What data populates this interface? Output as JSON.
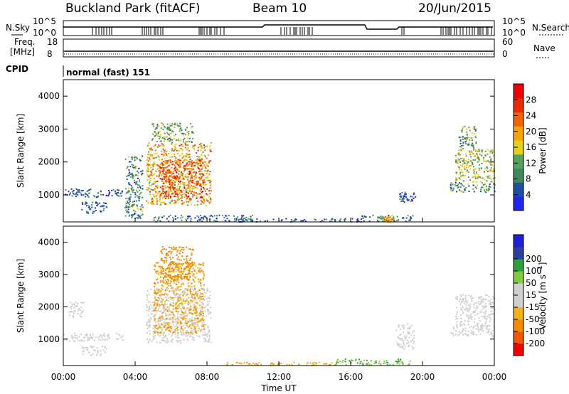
{
  "header": {
    "station": "Buckland Park (fitACF)",
    "beam": "Beam 10",
    "date": "20/Jun/2015"
  },
  "status_panels": {
    "nsky_label": "N.Sky",
    "nsky_ticks": [
      "10^5",
      "10^0"
    ],
    "nsearch_label": "N.Search",
    "nsearch_ticks": [
      "10^5",
      "10^0"
    ],
    "freq_label_1": "Freq.",
    "freq_label_2": "[MHz]",
    "freq_ticks": [
      "18",
      "8"
    ],
    "nave_label": "Nave",
    "nave_ticks": [
      "60",
      "0"
    ],
    "cpid_label": "CPID",
    "cpid_value": "normal (fast) 151"
  },
  "colors": {
    "power_scale": [
      "#1f25f5",
      "#1e4fa0",
      "#3d8a5f",
      "#55a35e",
      "#e6d01b",
      "#f7a400",
      "#f56300",
      "#f02800",
      "#f00000"
    ],
    "velocity_scale": [
      "#f00000",
      "#f55500",
      "#f58a00",
      "#f2b21e",
      "#cfcfcf",
      "#cfcfcf",
      "#80cc40",
      "#2aa13a",
      "#2a8a6e",
      "#2b3fa0",
      "#2020d8"
    ]
  },
  "chart_data": [
    {
      "type": "heatmap",
      "name_panel": "power",
      "xlabel": "",
      "ylabel": "Slant Range [km]",
      "ylim": [
        180,
        4500
      ],
      "xlim": [
        "00:00",
        "24:00"
      ],
      "y_ticks": [
        "1000",
        "2000",
        "3000",
        "4000"
      ],
      "colorbar_label": "Power [dB]",
      "colorbar_ticks": [
        "4",
        "8",
        "12",
        "16",
        "20",
        "24",
        "28"
      ],
      "colorbar_range": [
        0,
        32
      ],
      "regions": [
        {
          "t": [
            0.0,
            3.3
          ],
          "r": [
            950,
            1200
          ],
          "v": 6
        },
        {
          "t": [
            1.0,
            2.4
          ],
          "r": [
            450,
            800
          ],
          "v": 6
        },
        {
          "t": [
            4.6,
            8.2
          ],
          "r": [
            700,
            2600
          ],
          "v": 22
        },
        {
          "t": [
            5.3,
            7.8
          ],
          "r": [
            900,
            2100
          ],
          "v": 28
        },
        {
          "t": [
            4.9,
            7.2
          ],
          "r": [
            2600,
            3200
          ],
          "v": 14
        },
        {
          "t": [
            3.4,
            4.4
          ],
          "r": [
            300,
            2200
          ],
          "v": 10
        },
        {
          "t": [
            5.0,
            10.5
          ],
          "r": [
            200,
            400
          ],
          "v": 8
        },
        {
          "t": [
            9.5,
            16.5
          ],
          "r": [
            200,
            300
          ],
          "v": 6
        },
        {
          "t": [
            16.5,
            19.5
          ],
          "r": [
            200,
            400
          ],
          "v": 10
        },
        {
          "t": [
            17.8,
            18.4
          ],
          "r": [
            200,
            350
          ],
          "v": 22
        },
        {
          "t": [
            18.6,
            19.6
          ],
          "r": [
            800,
            1100
          ],
          "v": 6
        },
        {
          "t": [
            21.5,
            24.0
          ],
          "r": [
            1100,
            1400
          ],
          "v": 10
        },
        {
          "t": [
            21.8,
            24.0
          ],
          "r": [
            1400,
            2400
          ],
          "v": 16
        },
        {
          "t": [
            22.0,
            23.0
          ],
          "r": [
            2400,
            3100
          ],
          "v": 12
        }
      ]
    },
    {
      "type": "heatmap",
      "name_panel": "velocity",
      "xlabel": "Time UT",
      "ylabel": "Slant Range [km]",
      "ylim": [
        180,
        4500
      ],
      "xlim": [
        "00:00",
        "24:00"
      ],
      "x_ticks": [
        "00:00",
        "04:00",
        "08:00",
        "12:00",
        "16:00",
        "20:00",
        "00:00"
      ],
      "y_ticks": [
        "1000",
        "2000",
        "3000",
        "4000"
      ],
      "colorbar_label": "Velocity [m s^-1]",
      "colorbar_ticks": [
        "-200",
        "-100",
        "-50",
        "-15",
        "15",
        "50",
        "100",
        "200"
      ],
      "regions": [
        {
          "t": [
            0.0,
            3.3
          ],
          "r": [
            950,
            1200
          ],
          "v": 0
        },
        {
          "t": [
            0.3,
            1.2
          ],
          "r": [
            1700,
            2200
          ],
          "v": 0
        },
        {
          "t": [
            1.0,
            2.4
          ],
          "r": [
            500,
            800
          ],
          "v": 0
        },
        {
          "t": [
            4.6,
            8.2
          ],
          "r": [
            900,
            2600
          ],
          "v": 0
        },
        {
          "t": [
            5.0,
            7.8
          ],
          "r": [
            1200,
            3400
          ],
          "v": -30
        },
        {
          "t": [
            5.4,
            7.2
          ],
          "r": [
            2800,
            3900
          ],
          "v": -60
        },
        {
          "t": [
            9.0,
            15.0
          ],
          "r": [
            200,
            300
          ],
          "v": -30
        },
        {
          "t": [
            15.0,
            19.5
          ],
          "r": [
            200,
            400
          ],
          "v": 30
        },
        {
          "t": [
            18.5,
            19.5
          ],
          "r": [
            700,
            1500
          ],
          "v": 0
        },
        {
          "t": [
            21.5,
            24.0
          ],
          "r": [
            1100,
            1400
          ],
          "v": 0
        },
        {
          "t": [
            21.8,
            24.0
          ],
          "r": [
            1400,
            2400
          ],
          "v": 0
        }
      ]
    }
  ]
}
